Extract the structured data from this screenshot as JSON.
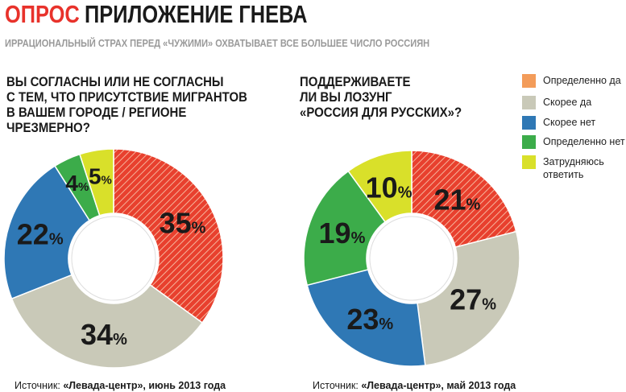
{
  "header": {
    "tag": "ОПРОС",
    "title": "ПРИЛОЖЕНИЕ ГНЕВА",
    "subtitle": "ИРРАЦИОНАЛЬНЫЙ СТРАХ ПЕРЕД «ЧУЖИМИ» ОХВАТЫВАЕТ ВСЕ БОЛЬШЕЕ ЧИСЛО РОССИЯН"
  },
  "legend": {
    "items": [
      {
        "label": "Определенно да",
        "color": "#f39c5a"
      },
      {
        "label": "Скорее да",
        "color": "#c9c9b8"
      },
      {
        "label": "Скорее нет",
        "color": "#2f78b5"
      },
      {
        "label": "Определенно нет",
        "color": "#3cac4a"
      },
      {
        "label": "Затрудняюсь\nответить",
        "color": "#d9e02a"
      }
    ]
  },
  "chart_data": [
    {
      "type": "pie",
      "title": "ВЫ СОГЛАСНЫ ИЛИ НЕ СОГЛАСНЫ\nС ТЕМ, ЧТО ПРИСУТСТВИЕ МИГРАНТОВ\nВ ВАШЕМ ГОРОДЕ / РЕГИОНЕ\nЧРЕЗМЕРНО?",
      "slices": [
        {
          "value": 35,
          "color": "#e8402e",
          "hatched": true,
          "label": "35"
        },
        {
          "value": 34,
          "color": "#c9c9b8",
          "hatched": false,
          "label": "34"
        },
        {
          "value": 22,
          "color": "#2f78b5",
          "hatched": false,
          "label": "22"
        },
        {
          "value": 4,
          "color": "#3cac4a",
          "hatched": false,
          "label": "4"
        },
        {
          "value": 5,
          "color": "#d9e02a",
          "hatched": false,
          "label": "5"
        }
      ],
      "unit": "%",
      "source_prefix": "Источник: ",
      "source_bold": "«Левада-центр», июнь 2013 года"
    },
    {
      "type": "pie",
      "title": "ПОДДЕРЖИВАЕТЕ\nЛИ ВЫ ЛОЗУНГ\n«РОССИЯ ДЛЯ РУССКИХ»?",
      "slices": [
        {
          "value": 21,
          "color": "#e8402e",
          "hatched": true,
          "label": "21"
        },
        {
          "value": 27,
          "color": "#c9c9b8",
          "hatched": false,
          "label": "27"
        },
        {
          "value": 23,
          "color": "#2f78b5",
          "hatched": false,
          "label": "23"
        },
        {
          "value": 19,
          "color": "#3cac4a",
          "hatched": false,
          "label": "19"
        },
        {
          "value": 10,
          "color": "#d9e02a",
          "hatched": false,
          "label": "10"
        }
      ],
      "unit": "%",
      "source_prefix": "Источник: ",
      "source_bold": "«Левада-центр», май 2013 года"
    }
  ]
}
